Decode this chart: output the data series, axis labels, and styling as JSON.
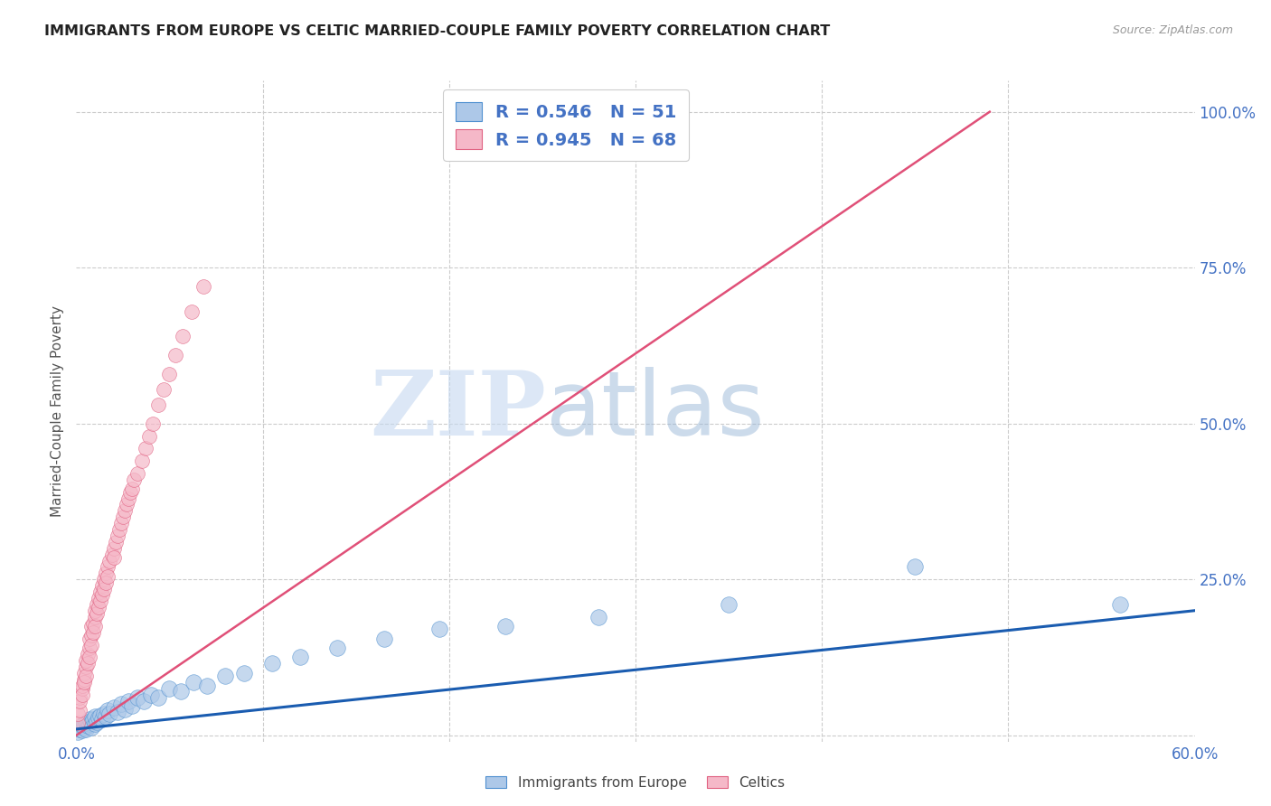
{
  "title": "IMMIGRANTS FROM EUROPE VS CELTIC MARRIED-COUPLE FAMILY POVERTY CORRELATION CHART",
  "source": "Source: ZipAtlas.com",
  "ylabel": "Married-Couple Family Poverty",
  "xlim": [
    0.0,
    0.6
  ],
  "ylim": [
    -0.01,
    1.05
  ],
  "xticks": [
    0.0,
    0.1,
    0.2,
    0.3,
    0.4,
    0.5,
    0.6
  ],
  "xticklabels": [
    "0.0%",
    "",
    "",
    "",
    "",
    "",
    "60.0%"
  ],
  "yticks": [
    0.0,
    0.25,
    0.5,
    0.75,
    1.0
  ],
  "yticklabels": [
    "",
    "25.0%",
    "50.0%",
    "75.0%",
    "100.0%"
  ],
  "blue_R": 0.546,
  "blue_N": 51,
  "pink_R": 0.945,
  "pink_N": 68,
  "blue_color": "#adc8e8",
  "blue_edge_color": "#5090d0",
  "blue_line_color": "#1a5cb0",
  "pink_color": "#f5b8c8",
  "pink_edge_color": "#e06080",
  "pink_line_color": "#e05078",
  "legend_label_blue": "Immigrants from Europe",
  "legend_label_pink": "Celtics",
  "watermark_zip": "ZIP",
  "watermark_atlas": "atlas",
  "background_color": "#ffffff",
  "grid_color": "#cccccc",
  "axis_label_color": "#4472c4",
  "title_color": "#222222",
  "blue_scatter_x": [
    0.001,
    0.002,
    0.003,
    0.003,
    0.004,
    0.004,
    0.005,
    0.005,
    0.006,
    0.006,
    0.007,
    0.007,
    0.008,
    0.008,
    0.009,
    0.01,
    0.01,
    0.011,
    0.012,
    0.013,
    0.014,
    0.015,
    0.016,
    0.017,
    0.018,
    0.02,
    0.022,
    0.024,
    0.026,
    0.028,
    0.03,
    0.033,
    0.036,
    0.04,
    0.044,
    0.05,
    0.056,
    0.063,
    0.07,
    0.08,
    0.09,
    0.105,
    0.12,
    0.14,
    0.165,
    0.195,
    0.23,
    0.28,
    0.35,
    0.45,
    0.56
  ],
  "blue_scatter_y": [
    0.005,
    0.01,
    0.008,
    0.015,
    0.012,
    0.018,
    0.01,
    0.02,
    0.015,
    0.022,
    0.018,
    0.025,
    0.02,
    0.012,
    0.025,
    0.018,
    0.03,
    0.022,
    0.028,
    0.032,
    0.025,
    0.035,
    0.03,
    0.04,
    0.035,
    0.045,
    0.038,
    0.05,
    0.042,
    0.055,
    0.048,
    0.06,
    0.055,
    0.065,
    0.06,
    0.075,
    0.07,
    0.085,
    0.08,
    0.095,
    0.1,
    0.115,
    0.125,
    0.14,
    0.155,
    0.17,
    0.175,
    0.19,
    0.21,
    0.27,
    0.21
  ],
  "pink_scatter_x": [
    0.001,
    0.001,
    0.002,
    0.002,
    0.002,
    0.003,
    0.003,
    0.003,
    0.004,
    0.004,
    0.004,
    0.005,
    0.005,
    0.005,
    0.006,
    0.006,
    0.007,
    0.007,
    0.007,
    0.008,
    0.008,
    0.008,
    0.009,
    0.009,
    0.01,
    0.01,
    0.01,
    0.011,
    0.011,
    0.012,
    0.012,
    0.013,
    0.013,
    0.014,
    0.014,
    0.015,
    0.015,
    0.016,
    0.016,
    0.017,
    0.017,
    0.018,
    0.019,
    0.02,
    0.02,
    0.021,
    0.022,
    0.023,
    0.024,
    0.025,
    0.026,
    0.027,
    0.028,
    0.029,
    0.03,
    0.031,
    0.033,
    0.035,
    0.037,
    0.039,
    0.041,
    0.044,
    0.047,
    0.05,
    0.053,
    0.057,
    0.062,
    0.068
  ],
  "pink_scatter_y": [
    0.02,
    0.035,
    0.04,
    0.06,
    0.055,
    0.075,
    0.08,
    0.065,
    0.09,
    0.1,
    0.085,
    0.11,
    0.12,
    0.095,
    0.13,
    0.115,
    0.14,
    0.155,
    0.125,
    0.16,
    0.175,
    0.145,
    0.18,
    0.165,
    0.19,
    0.2,
    0.175,
    0.21,
    0.195,
    0.22,
    0.205,
    0.23,
    0.215,
    0.24,
    0.225,
    0.25,
    0.235,
    0.26,
    0.245,
    0.27,
    0.255,
    0.28,
    0.29,
    0.3,
    0.285,
    0.31,
    0.32,
    0.33,
    0.34,
    0.35,
    0.36,
    0.37,
    0.38,
    0.39,
    0.395,
    0.41,
    0.42,
    0.44,
    0.46,
    0.48,
    0.5,
    0.53,
    0.555,
    0.58,
    0.61,
    0.64,
    0.68,
    0.72
  ],
  "pink_line_x0": 0.0,
  "pink_line_y0": 0.0,
  "pink_line_x1": 0.49,
  "pink_line_y1": 1.0,
  "blue_line_x0": 0.0,
  "blue_line_y0": 0.01,
  "blue_line_x1": 0.6,
  "blue_line_y1": 0.2
}
